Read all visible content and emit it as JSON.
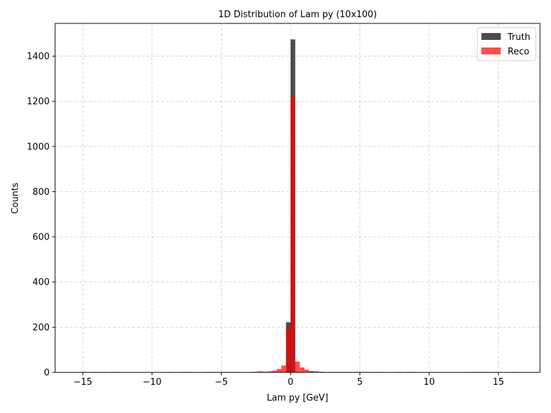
{
  "chart_data": {
    "type": "bar",
    "title": "1D Distribution of Lam py (10x100)",
    "xlabel": "Lam py [GeV]",
    "ylabel": "Counts",
    "xlim": [
      -17,
      18
    ],
    "ylim": [
      0,
      1545
    ],
    "bin_width": 0.3333,
    "x_ticks": [
      -15,
      -10,
      -5,
      0,
      5,
      10,
      15
    ],
    "x_tick_labels": [
      "−15",
      "−10",
      "−5",
      "0",
      "5",
      "10",
      "15"
    ],
    "y_ticks": [
      0,
      200,
      400,
      600,
      800,
      1000,
      1200,
      1400
    ],
    "y_tick_labels": [
      "0",
      "200",
      "400",
      "600",
      "800",
      "1000",
      "1200",
      "1400"
    ],
    "grid": true,
    "legend_position": "top-right",
    "series": [
      {
        "name": "Truth",
        "color": "#000000",
        "opacity": 0.7,
        "bins": [
          {
            "x": -0.33,
            "y": 222
          },
          {
            "x": 0.0,
            "y": 1474
          }
        ]
      },
      {
        "name": "Reco",
        "color": "#ff0000",
        "opacity": 0.7,
        "bins": [
          {
            "x": -15.0,
            "y": 2
          },
          {
            "x": -14.33,
            "y": 2
          },
          {
            "x": -13.67,
            "y": 2
          },
          {
            "x": -13.0,
            "y": 2
          },
          {
            "x": -12.67,
            "y": 2
          },
          {
            "x": -9.0,
            "y": 2
          },
          {
            "x": -8.0,
            "y": 2
          },
          {
            "x": -7.67,
            "y": 2
          },
          {
            "x": -7.33,
            "y": 2
          },
          {
            "x": -6.33,
            "y": 2
          },
          {
            "x": -6.0,
            "y": 2
          },
          {
            "x": -5.67,
            "y": 2
          },
          {
            "x": -5.33,
            "y": 2
          },
          {
            "x": -5.0,
            "y": 2
          },
          {
            "x": -4.67,
            "y": 2
          },
          {
            "x": -4.33,
            "y": 2
          },
          {
            "x": -4.0,
            "y": 2
          },
          {
            "x": -3.0,
            "y": 2
          },
          {
            "x": -2.67,
            "y": 3
          },
          {
            "x": -2.33,
            "y": 5
          },
          {
            "x": -2.0,
            "y": 3
          },
          {
            "x": -1.67,
            "y": 5
          },
          {
            "x": -1.33,
            "y": 8
          },
          {
            "x": -1.0,
            "y": 15
          },
          {
            "x": -0.67,
            "y": 30
          },
          {
            "x": -0.33,
            "y": 200
          },
          {
            "x": 0.0,
            "y": 1220
          },
          {
            "x": 0.33,
            "y": 48
          },
          {
            "x": 0.67,
            "y": 22
          },
          {
            "x": 1.0,
            "y": 12
          },
          {
            "x": 1.33,
            "y": 6
          },
          {
            "x": 1.67,
            "y": 5
          },
          {
            "x": 2.0,
            "y": 3
          },
          {
            "x": 2.33,
            "y": 2
          },
          {
            "x": 2.67,
            "y": 2
          },
          {
            "x": 3.0,
            "y": 2
          },
          {
            "x": 3.33,
            "y": 2
          },
          {
            "x": 3.67,
            "y": 2
          },
          {
            "x": 4.0,
            "y": 2
          },
          {
            "x": 4.33,
            "y": 2
          },
          {
            "x": 4.67,
            "y": 2
          },
          {
            "x": 5.0,
            "y": 2
          },
          {
            "x": 5.33,
            "y": 2
          },
          {
            "x": 6.0,
            "y": 2
          },
          {
            "x": 6.33,
            "y": 2
          },
          {
            "x": 7.67,
            "y": 2
          },
          {
            "x": 8.33,
            "y": 2
          },
          {
            "x": 8.67,
            "y": 2
          },
          {
            "x": 12.67,
            "y": 2
          },
          {
            "x": 13.0,
            "y": 2
          },
          {
            "x": 13.33,
            "y": 2
          },
          {
            "x": 13.67,
            "y": 2
          },
          {
            "x": 14.0,
            "y": 2
          },
          {
            "x": 14.67,
            "y": 2
          },
          {
            "x": 16.0,
            "y": 2
          }
        ]
      }
    ]
  }
}
